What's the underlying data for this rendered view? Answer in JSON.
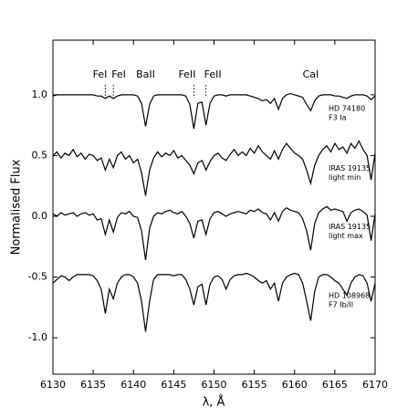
{
  "chart_data": {
    "type": "line",
    "xlabel": "λ, Å",
    "ylabel": "Normalised Flux",
    "xlim": [
      6130,
      6170
    ],
    "ylim": [
      -1.3,
      1.45
    ],
    "xticks": [
      6130,
      6135,
      6140,
      6145,
      6150,
      6155,
      6160,
      6165,
      6170
    ],
    "yticks": [
      {
        "value": -1,
        "label": "-1.0"
      },
      {
        "value": -0.5,
        "label": "-0.5"
      },
      {
        "value": 0,
        "label": "0.0"
      },
      0.5,
      {
        "value": 1,
        "label": "1.0"
      }
    ],
    "annotations": [
      {
        "text": "FeI",
        "x": 6136.5,
        "color": "#000000",
        "marker": true
      },
      {
        "text": "FeI",
        "x": 6137.5,
        "color": "#000000",
        "marker": true
      },
      {
        "text": "BaII",
        "x": 6141.5,
        "color": "#888888",
        "marker": false
      },
      {
        "text": "FeII",
        "x": 6147.5,
        "color": "#000000",
        "marker": true
      },
      {
        "text": "FeII",
        "x": 6149,
        "color": "#000000",
        "marker": true
      },
      {
        "text": "CaI",
        "x": 6162,
        "color": "#888888",
        "marker": false
      }
    ],
    "x": [
      6130,
      6130.5,
      6131,
      6131.5,
      6132,
      6132.5,
      6133,
      6133.5,
      6134,
      6134.5,
      6135,
      6135.5,
      6136,
      6136.5,
      6137,
      6137.5,
      6138,
      6138.5,
      6139,
      6139.5,
      6140,
      6140.5,
      6141,
      6141.5,
      6142,
      6142.5,
      6143,
      6143.5,
      6144,
      6144.5,
      6145,
      6145.5,
      6146,
      6146.5,
      6147,
      6147.5,
      6148,
      6148.5,
      6149,
      6149.5,
      6150,
      6150.5,
      6151,
      6151.5,
      6152,
      6152.5,
      6153,
      6153.5,
      6154,
      6154.5,
      6155,
      6155.5,
      6156,
      6156.5,
      6157,
      6157.5,
      6158,
      6158.5,
      6159,
      6159.5,
      6160,
      6160.5,
      6161,
      6161.5,
      6162,
      6162.5,
      6163,
      6163.5,
      6164,
      6164.5,
      6165,
      6165.5,
      6166,
      6166.5,
      6167,
      6167.5,
      6168,
      6168.5,
      6169,
      6169.5,
      6170
    ],
    "series": [
      {
        "name": "HD 74180",
        "subname": "F3 Ia",
        "color": "#000000",
        "values": [
          0.99,
          1.0,
          1.0,
          1.0,
          1.0,
          1.0,
          1.0,
          1.0,
          1.0,
          1.0,
          1.0,
          0.99,
          0.99,
          0.97,
          0.99,
          0.97,
          0.99,
          1.0,
          1.0,
          1.0,
          1.0,
          0.99,
          0.93,
          0.74,
          0.92,
          0.99,
          1.0,
          1.0,
          1.0,
          1.0,
          1.0,
          1.0,
          1.0,
          0.99,
          0.92,
          0.72,
          0.93,
          0.94,
          0.75,
          0.93,
          0.99,
          1.0,
          1.0,
          0.99,
          1.0,
          1.0,
          1.0,
          1.0,
          1.0,
          0.99,
          0.98,
          0.97,
          0.95,
          0.96,
          0.93,
          0.97,
          0.88,
          0.97,
          1.0,
          1.01,
          1.0,
          0.99,
          0.98,
          0.92,
          0.87,
          0.95,
          0.99,
          1.0,
          1.0,
          1.0,
          0.99,
          0.99,
          0.98,
          0.97,
          0.99,
          1.0,
          1.0,
          1.0,
          0.99,
          0.96,
          0.99
        ]
      },
      {
        "name": "IRAS 19135",
        "subname": "light min",
        "color": "#000000",
        "values": [
          0.5,
          0.53,
          0.48,
          0.52,
          0.5,
          0.55,
          0.49,
          0.52,
          0.47,
          0.51,
          0.5,
          0.46,
          0.48,
          0.38,
          0.47,
          0.4,
          0.5,
          0.53,
          0.47,
          0.5,
          0.44,
          0.47,
          0.36,
          0.17,
          0.38,
          0.48,
          0.53,
          0.49,
          0.52,
          0.5,
          0.54,
          0.48,
          0.5,
          0.46,
          0.42,
          0.35,
          0.44,
          0.46,
          0.38,
          0.45,
          0.5,
          0.52,
          0.48,
          0.46,
          0.51,
          0.55,
          0.5,
          0.53,
          0.5,
          0.56,
          0.52,
          0.58,
          0.53,
          0.5,
          0.47,
          0.54,
          0.47,
          0.55,
          0.6,
          0.56,
          0.52,
          0.5,
          0.47,
          0.38,
          0.27,
          0.42,
          0.5,
          0.55,
          0.58,
          0.53,
          0.6,
          0.55,
          0.57,
          0.52,
          0.6,
          0.56,
          0.62,
          0.55,
          0.5,
          0.3,
          0.52
        ]
      },
      {
        "name": "IRAS 19135",
        "subname": "light max",
        "color": "#000000",
        "values": [
          0.02,
          0.0,
          0.03,
          0.01,
          0.02,
          0.03,
          0.0,
          0.02,
          0.03,
          0.01,
          0.02,
          -0.03,
          -0.02,
          -0.15,
          -0.03,
          -0.13,
          -0.01,
          0.03,
          0.02,
          0.04,
          0.0,
          -0.01,
          -0.12,
          -0.36,
          -0.1,
          0.0,
          0.03,
          0.02,
          0.04,
          0.05,
          0.03,
          0.02,
          0.04,
          0.0,
          -0.06,
          -0.18,
          -0.04,
          -0.03,
          -0.15,
          -0.02,
          0.03,
          0.04,
          0.02,
          0.0,
          0.02,
          0.03,
          0.04,
          0.03,
          0.02,
          0.05,
          0.04,
          0.06,
          0.03,
          0.02,
          -0.03,
          0.03,
          -0.04,
          0.04,
          0.07,
          0.05,
          0.04,
          0.03,
          -0.02,
          -0.12,
          -0.28,
          -0.06,
          0.03,
          0.06,
          0.08,
          0.05,
          0.06,
          0.05,
          0.04,
          -0.04,
          0.03,
          0.05,
          0.06,
          0.04,
          0.01,
          -0.2,
          0.02
        ]
      },
      {
        "name": "HD 108968",
        "subname": "F7 Ib/II",
        "color": "#000000",
        "values": [
          -0.55,
          -0.52,
          -0.49,
          -0.5,
          -0.53,
          -0.5,
          -0.48,
          -0.48,
          -0.48,
          -0.48,
          -0.49,
          -0.53,
          -0.6,
          -0.8,
          -0.6,
          -0.68,
          -0.55,
          -0.5,
          -0.48,
          -0.48,
          -0.5,
          -0.55,
          -0.7,
          -0.95,
          -0.7,
          -0.52,
          -0.48,
          -0.48,
          -0.48,
          -0.48,
          -0.49,
          -0.48,
          -0.48,
          -0.52,
          -0.6,
          -0.73,
          -0.58,
          -0.56,
          -0.73,
          -0.56,
          -0.5,
          -0.49,
          -0.52,
          -0.6,
          -0.52,
          -0.49,
          -0.48,
          -0.48,
          -0.47,
          -0.48,
          -0.5,
          -0.53,
          -0.55,
          -0.53,
          -0.6,
          -0.55,
          -0.7,
          -0.55,
          -0.5,
          -0.48,
          -0.47,
          -0.48,
          -0.55,
          -0.7,
          -0.86,
          -0.62,
          -0.5,
          -0.48,
          -0.48,
          -0.5,
          -0.53,
          -0.55,
          -0.6,
          -0.65,
          -0.55,
          -0.5,
          -0.48,
          -0.49,
          -0.55,
          -0.7,
          -0.55
        ]
      }
    ]
  }
}
